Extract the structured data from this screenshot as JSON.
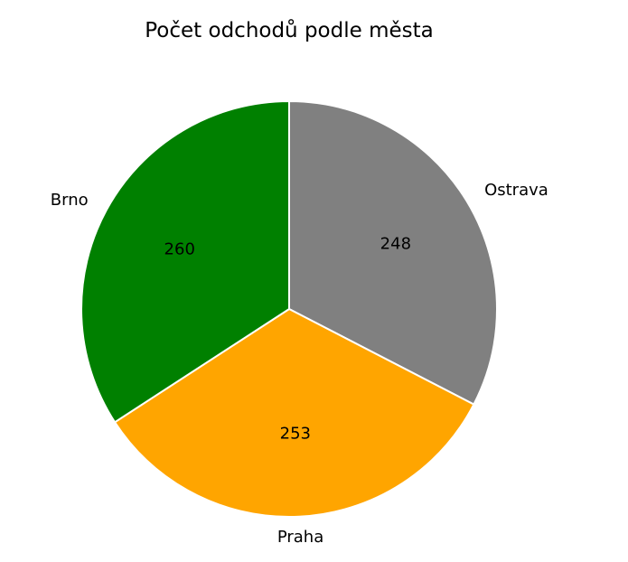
{
  "chart_data": {
    "type": "pie",
    "title": "Počet odchodů podle města",
    "categories": [
      "Ostrava",
      "Praha",
      "Brno"
    ],
    "values": [
      248,
      253,
      260
    ],
    "value_labels": [
      "248",
      "253",
      "260"
    ],
    "colors": [
      "#808080",
      "#ffa500",
      "#008000"
    ],
    "start_angle_deg": 90,
    "direction": "clockwise",
    "legend": "none"
  }
}
